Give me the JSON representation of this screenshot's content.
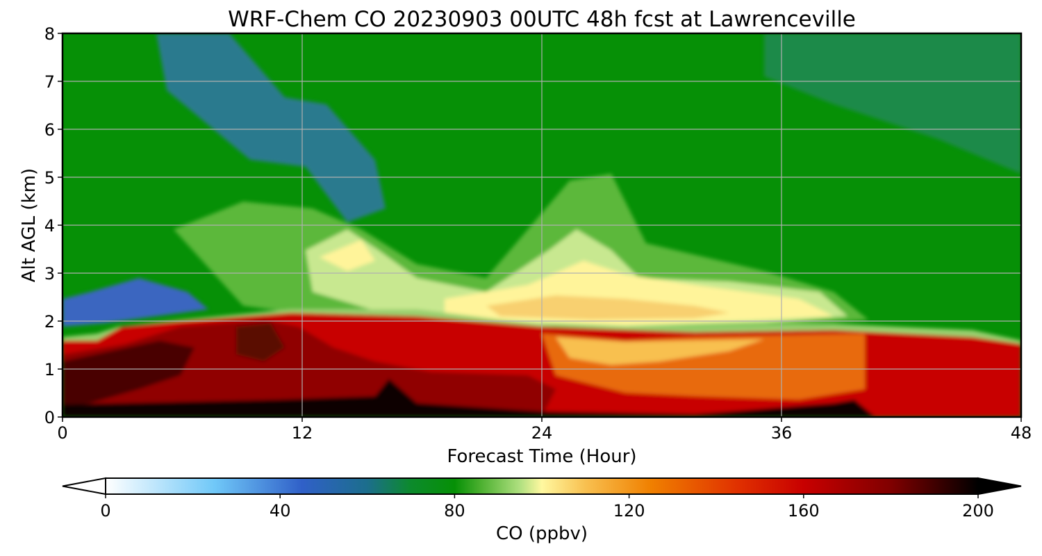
{
  "chart_data": {
    "type": "heatmap",
    "title": "WRF-Chem CO  20230903 00UTC 48h fcst at Lawrenceville",
    "xlabel": "Forecast Time (Hour)",
    "ylabel": "Alt AGL (km)",
    "xlim": [
      0,
      48
    ],
    "ylim": [
      0,
      8
    ],
    "xticks": [
      0,
      12,
      24,
      36,
      48
    ],
    "yticks": [
      0,
      1,
      2,
      3,
      4,
      5,
      6,
      7,
      8
    ],
    "grid": true,
    "colorbar": {
      "label": "CO  (ppbv)",
      "ticks": [
        0,
        40,
        80,
        120,
        160,
        200
      ],
      "range": [
        0,
        200
      ],
      "extend": "both"
    },
    "colors": {
      "stops": [
        "#ffffff",
        "#70c8f8",
        "#3060c8",
        "#1c6e8c",
        "#0c8a2c",
        "#069006",
        "#4cb030",
        "#b0e080",
        "#fff8a0",
        "#f8c050",
        "#f08000",
        "#e03000",
        "#c80000",
        "#800000",
        "#000000"
      ],
      "stop_values": [
        0,
        25,
        45,
        60,
        70,
        80,
        86,
        95,
        100,
        110,
        125,
        145,
        160,
        180,
        200
      ]
    }
  }
}
